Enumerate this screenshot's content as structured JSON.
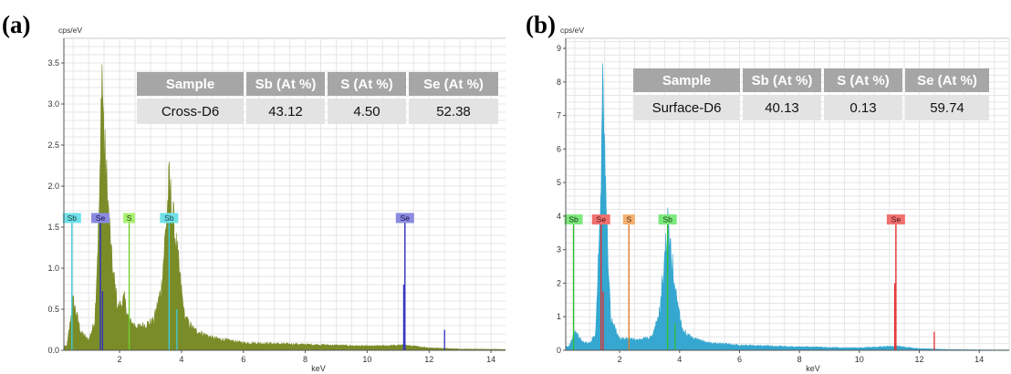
{
  "panels": [
    {
      "label": "(a)",
      "table": {
        "headers": [
          "Sample",
          "Sb (At %)",
          "S (At %)",
          "Se (At %)"
        ],
        "row": [
          "Cross-D6",
          "43.12",
          "4.50",
          "52.38"
        ]
      }
    },
    {
      "label": "(b)",
      "table": {
        "headers": [
          "Sample",
          "Sb (At %)",
          "S (At %)",
          "Se (At %)"
        ],
        "row": [
          "Surface-D6",
          "40.13",
          "0.13",
          "59.74"
        ]
      }
    }
  ],
  "chart_data": [
    {
      "type": "area",
      "ylabel": "cps/eV",
      "xlabel": "keV",
      "xlim": [
        0.2,
        15.0
      ],
      "ylim": [
        0,
        3.8
      ],
      "x_ticks": [
        2,
        4,
        6,
        8,
        10,
        12,
        14
      ],
      "y_ticks": [
        0.0,
        0.5,
        1.0,
        1.5,
        2.0,
        2.5,
        3.0,
        3.5
      ],
      "grid": true,
      "spectrum_color": "#7a8c28",
      "peaks": [
        {
          "x": 0.3,
          "y": 0.05
        },
        {
          "x": 0.5,
          "y": 0.6
        },
        {
          "x": 0.75,
          "y": 0.22
        },
        {
          "x": 1.0,
          "y": 0.12
        },
        {
          "x": 1.2,
          "y": 0.35
        },
        {
          "x": 1.38,
          "y": 2.1
        },
        {
          "x": 1.42,
          "y": 3.6
        },
        {
          "x": 1.5,
          "y": 2.5
        },
        {
          "x": 1.75,
          "y": 1.05
        },
        {
          "x": 1.95,
          "y": 0.5
        },
        {
          "x": 2.15,
          "y": 0.62
        },
        {
          "x": 2.31,
          "y": 0.35
        },
        {
          "x": 2.6,
          "y": 0.28
        },
        {
          "x": 3.1,
          "y": 0.35
        },
        {
          "x": 3.35,
          "y": 0.75
        },
        {
          "x": 3.6,
          "y": 2.0
        },
        {
          "x": 3.85,
          "y": 1.2
        },
        {
          "x": 4.1,
          "y": 0.4
        },
        {
          "x": 4.4,
          "y": 0.25
        },
        {
          "x": 5.0,
          "y": 0.15
        },
        {
          "x": 6.0,
          "y": 0.09
        },
        {
          "x": 8.0,
          "y": 0.07
        },
        {
          "x": 10.0,
          "y": 0.05
        },
        {
          "x": 11.2,
          "y": 0.06
        },
        {
          "x": 12.0,
          "y": 0.03
        },
        {
          "x": 13.0,
          "y": 0.015
        },
        {
          "x": 14.5,
          "y": 0.01
        }
      ],
      "element_markers": [
        {
          "label": "Sb",
          "x": 0.46,
          "height": 1.55,
          "color": "#6fe0e8",
          "line_color": "#40c8d8",
          "text_color": "#103a40"
        },
        {
          "label": "Se",
          "x": 1.38,
          "height": 1.55,
          "color": "#8a8ae0",
          "line_color": "#3030c0",
          "text_color": "#10104a"
        },
        {
          "label": "S",
          "x": 2.31,
          "height": 1.55,
          "color": "#a8f070",
          "line_color": "#70d030",
          "text_color": "#204010"
        },
        {
          "label": "Sb",
          "x": 3.6,
          "height": 1.55,
          "color": "#6fe0e8",
          "line_color": "#40c8d8",
          "text_color": "#103a40"
        },
        {
          "label": "Se",
          "x": 11.22,
          "height": 1.55,
          "color": "#8a8ae0",
          "line_color": "#3030c0",
          "text_color": "#10104a"
        }
      ],
      "minor_lines": [
        {
          "x": 1.45,
          "y": 0.72,
          "color": "#3030c0"
        },
        {
          "x": 11.18,
          "y": 0.8,
          "color": "#3030c0"
        },
        {
          "x": 12.5,
          "y": 0.25,
          "color": "#3030c0"
        },
        {
          "x": 3.85,
          "y": 0.5,
          "color": "#40c8d8"
        }
      ]
    },
    {
      "type": "area",
      "ylabel": "cps/eV",
      "xlabel": "keV",
      "xlim": [
        0.2,
        15.0
      ],
      "ylim": [
        0,
        9.3
      ],
      "x_ticks": [
        2,
        4,
        6,
        8,
        10,
        12,
        14
      ],
      "y_ticks": [
        0,
        1,
        2,
        3,
        4,
        5,
        6,
        7,
        8,
        9
      ],
      "grid": true,
      "spectrum_color": "#35a7d0",
      "peaks": [
        {
          "x": 0.3,
          "y": 0.1
        },
        {
          "x": 0.5,
          "y": 0.55
        },
        {
          "x": 0.75,
          "y": 0.25
        },
        {
          "x": 1.0,
          "y": 0.2
        },
        {
          "x": 1.2,
          "y": 0.5
        },
        {
          "x": 1.38,
          "y": 5.0
        },
        {
          "x": 1.42,
          "y": 8.7
        },
        {
          "x": 1.5,
          "y": 5.5
        },
        {
          "x": 1.7,
          "y": 0.9
        },
        {
          "x": 2.0,
          "y": 0.35
        },
        {
          "x": 2.6,
          "y": 0.3
        },
        {
          "x": 3.1,
          "y": 0.4
        },
        {
          "x": 3.35,
          "y": 1.2
        },
        {
          "x": 3.6,
          "y": 3.7
        },
        {
          "x": 3.85,
          "y": 1.85
        },
        {
          "x": 4.1,
          "y": 0.6
        },
        {
          "x": 4.4,
          "y": 0.35
        },
        {
          "x": 5.0,
          "y": 0.22
        },
        {
          "x": 6.0,
          "y": 0.15
        },
        {
          "x": 8.0,
          "y": 0.1
        },
        {
          "x": 10.0,
          "y": 0.07
        },
        {
          "x": 11.2,
          "y": 0.12
        },
        {
          "x": 12.0,
          "y": 0.05
        },
        {
          "x": 13.0,
          "y": 0.02
        },
        {
          "x": 14.5,
          "y": 0.01
        }
      ],
      "element_markers": [
        {
          "label": "Sb",
          "x": 0.46,
          "height": 3.75,
          "color": "#7ce87c",
          "line_color": "#30c030",
          "text_color": "#103a10"
        },
        {
          "label": "Se",
          "x": 1.38,
          "height": 3.75,
          "color": "#f07070",
          "line_color": "#e03030",
          "text_color": "#4a1010"
        },
        {
          "label": "S",
          "x": 2.31,
          "height": 3.75,
          "color": "#f5b070",
          "line_color": "#e08030",
          "text_color": "#4a2a10"
        },
        {
          "label": "Sb",
          "x": 3.6,
          "height": 3.75,
          "color": "#7ce87c",
          "line_color": "#30c030",
          "text_color": "#103a10"
        },
        {
          "label": "Se",
          "x": 11.22,
          "height": 3.75,
          "color": "#f07070",
          "line_color": "#e03030",
          "text_color": "#4a1010"
        }
      ],
      "minor_lines": [
        {
          "x": 1.45,
          "y": 1.75,
          "color": "#e03030"
        },
        {
          "x": 11.18,
          "y": 2.0,
          "color": "#e03030"
        },
        {
          "x": 12.5,
          "y": 0.55,
          "color": "#e03030"
        },
        {
          "x": 3.85,
          "y": 0.8,
          "color": "#30c030"
        }
      ]
    }
  ]
}
